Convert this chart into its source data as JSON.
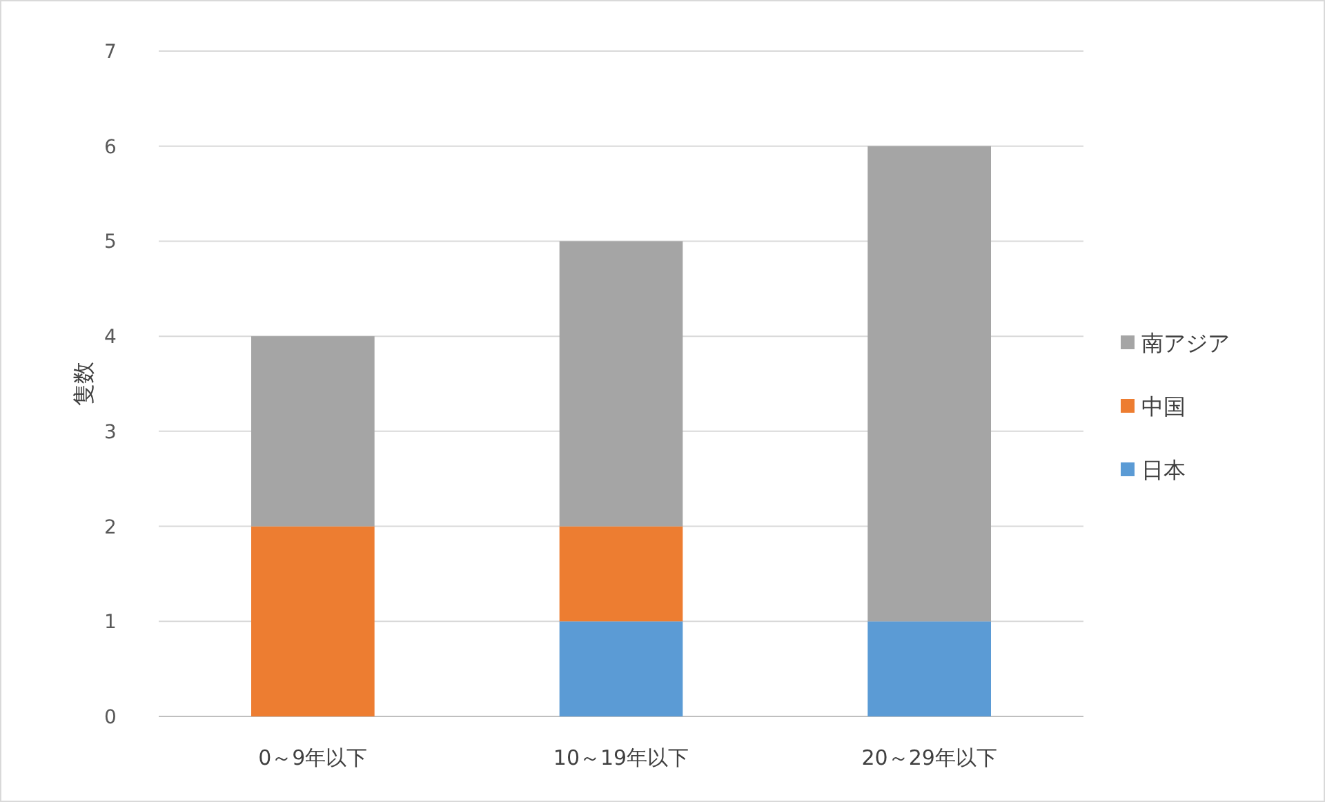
{
  "chart_data": {
    "type": "bar",
    "stacked": true,
    "ylabel": "隻数",
    "categories": [
      "0～9年以下",
      "10～19年以下",
      "20～29年以下"
    ],
    "series": [
      {
        "name": "日本",
        "color": "#5b9bd5",
        "values": [
          0,
          1,
          1
        ]
      },
      {
        "name": "中国",
        "color": "#ed7d31",
        "values": [
          2,
          1,
          0
        ]
      },
      {
        "name": "南アジア",
        "color": "#a5a5a5",
        "values": [
          2,
          3,
          5
        ]
      }
    ],
    "ylim": [
      0,
      7
    ],
    "yticks": [
      0,
      1,
      2,
      3,
      4,
      5,
      6,
      7
    ],
    "grid": "y",
    "legend": "right"
  }
}
